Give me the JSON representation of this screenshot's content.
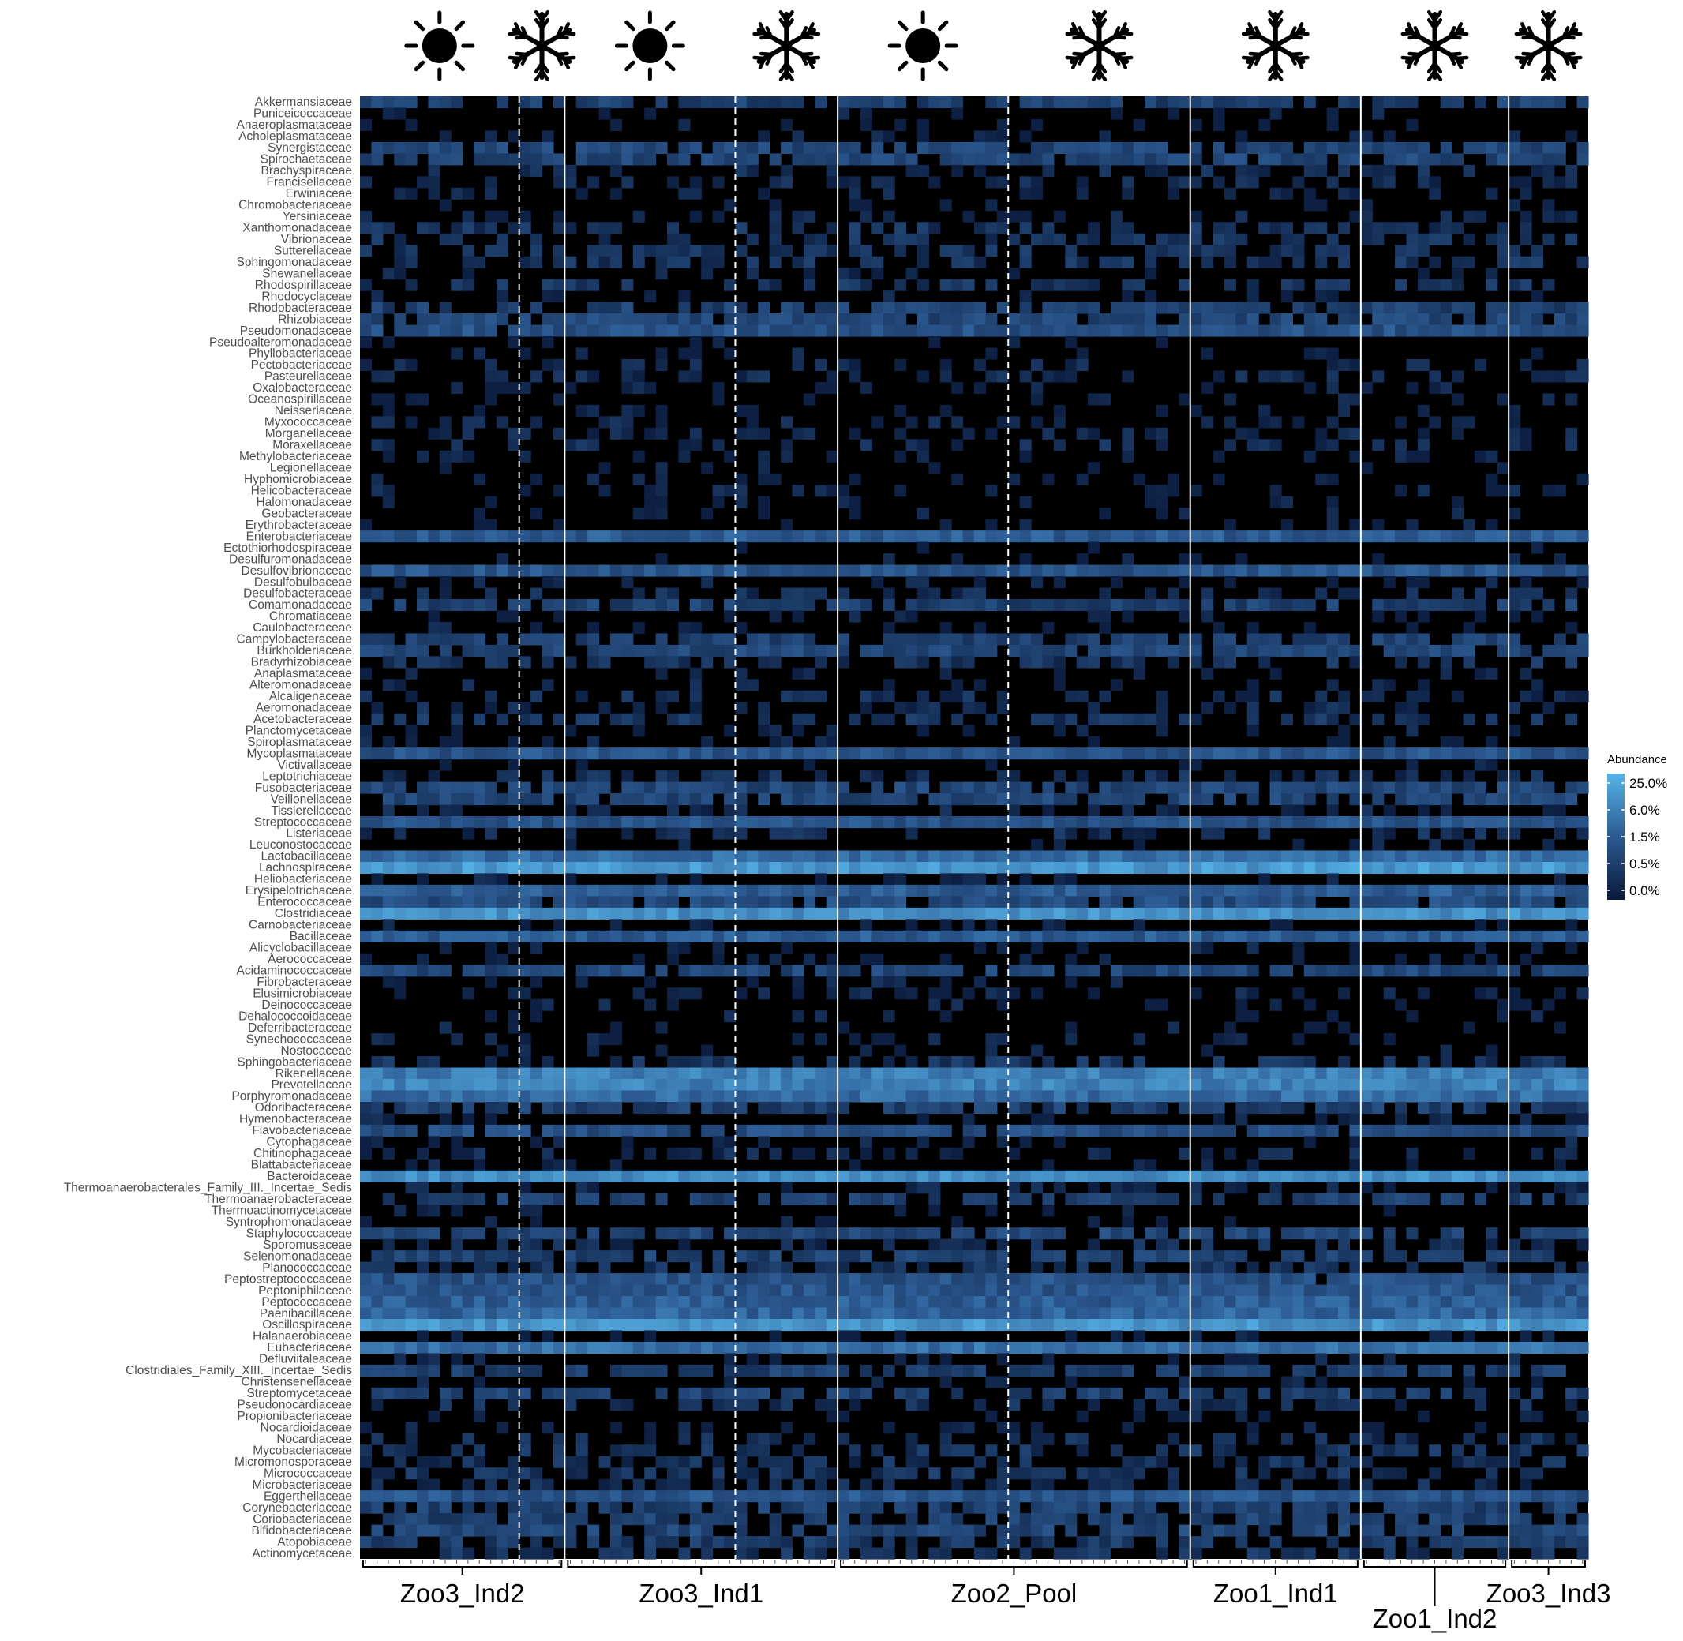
{
  "chart_data": {
    "type": "heatmap",
    "title": "",
    "xlabel": "",
    "ylabel": "",
    "rows": [
      "Akkermansiaceae",
      "Puniceicoccaceae",
      "Anaeroplasmataceae",
      "Acholeplasmataceae",
      "Synergistaceae",
      "Spirochaetaceae",
      "Brachyspiraceae",
      "Francisellaceae",
      "Erwiniaceae",
      "Chromobacteriaceae",
      "Yersiniaceae",
      "Xanthomonadaceae",
      "Vibrionaceae",
      "Sutterellaceae",
      "Sphingomonadaceae",
      "Shewanellaceae",
      "Rhodospirillaceae",
      "Rhodocyclaceae",
      "Rhodobacteraceae",
      "Rhizobiaceae",
      "Pseudomonadaceae",
      "Pseudoalteromonadaceae",
      "Phyllobacteriaceae",
      "Pectobacteriaceae",
      "Pasteurellaceae",
      "Oxalobacteraceae",
      "Oceanospirillaceae",
      "Neisseriaceae",
      "Myxococcaceae",
      "Morganellaceae",
      "Moraxellaceae",
      "Methylobacteriaceae",
      "Legionellaceae",
      "Hyphomicrobiaceae",
      "Helicobacteraceae",
      "Halomonadaceae",
      "Geobacteraceae",
      "Erythrobacteraceae",
      "Enterobacteriaceae",
      "Ectothiorhodospiraceae",
      "Desulfuromonadaceae",
      "Desulfovibrionaceae",
      "Desulfobulbaceae",
      "Desulfobacteraceae",
      "Comamonadaceae",
      "Chromatiaceae",
      "Caulobacteraceae",
      "Campylobacteraceae",
      "Burkholderiaceae",
      "Bradyrhizobiaceae",
      "Anaplasmataceae",
      "Alteromonadaceae",
      "Alcaligenaceae",
      "Aeromonadaceae",
      "Acetobacteraceae",
      "Planctomycetaceae",
      "Spiroplasmataceae",
      "Mycoplasmataceae",
      "Victivallaceae",
      "Leptotrichiaceae",
      "Fusobacteriaceae",
      "Veillonellaceae",
      "Tissierellaceae",
      "Streptococcaceae",
      "Listeriaceae",
      "Leuconostocaceae",
      "Lactobacillaceae",
      "Lachnospiraceae",
      "Heliobacteriaceae",
      "Erysipelotrichaceae",
      "Enterococcaceae",
      "Clostridiaceae",
      "Carnobacteriaceae",
      "Bacillaceae",
      "Alicyclobacillaceae",
      "Aerococcaceae",
      "Acidaminococcaceae",
      "Fibrobacteraceae",
      "Elusimicrobiaceae",
      "Deinococcaceae",
      "Dehalococcoidaceae",
      "Deferribacteraceae",
      "Synechococcaceae",
      "Nostocaceae",
      "Sphingobacteriaceae",
      "Rikenellaceae",
      "Prevotellaceae",
      "Porphyromonadaceae",
      "Odoribacteraceae",
      "Hymenobacteraceae",
      "Flavobacteriaceae",
      "Cytophagaceae",
      "Chitinophagaceae",
      "Blattabacteriaceae",
      "Bacteroidaceae",
      "Thermoanaerobacterales_Family_III._Incertae_Sedis",
      "Thermoanaerobacteraceae",
      "Thermoactinomycetaceae",
      "Syntrophomonadaceae",
      "Staphylococcaceae",
      "Sporomusaceae",
      "Selenomonadaceae",
      "Planococcaceae",
      "Peptostreptococcaceae",
      "Peptoniphilaceae",
      "Peptococcaceae",
      "Paenibacillaceae",
      "Oscillospiraceae",
      "Halanaerobiaceae",
      "Eubacteriaceae",
      "Defluviitaleaceae",
      "Clostridiales_Family_XIII._Incertae_Sedis",
      "Christensenellaceae",
      "Streptomycetaceae",
      "Pseudonocardiaceae",
      "Propionibacteriaceae",
      "Nocardioidaceae",
      "Nocardiaceae",
      "Mycobacteriaceae",
      "Micromonosporaceae",
      "Micrococcaceae",
      "Microbacteriaceae",
      "Eggerthellaceae",
      "Corynebacteriaceae",
      "Coriobacteriaceae",
      "Bifidobacteriaceae",
      "Atopobiaceae",
      "Actinomycetaceae"
    ],
    "groups": [
      {
        "label": "Zoo3_Ind2",
        "columns": 18,
        "seasons": [
          {
            "icon": "sun-icon",
            "columns": 14
          },
          {
            "icon": "snowflake-icon",
            "columns": 4
          }
        ]
      },
      {
        "label": "Zoo3_Ind1",
        "columns": 24,
        "seasons": [
          {
            "icon": "sun-icon",
            "columns": 15
          },
          {
            "icon": "snowflake-icon",
            "columns": 9
          }
        ]
      },
      {
        "label": "Zoo2_Pool",
        "columns": 31,
        "seasons": [
          {
            "icon": "sun-icon",
            "columns": 15
          },
          {
            "icon": "snowflake-icon",
            "columns": 16
          }
        ]
      },
      {
        "label": "Zoo1_Ind1",
        "columns": 15,
        "seasons": [
          {
            "icon": "snowflake-icon",
            "columns": 15
          }
        ]
      },
      {
        "label": "Zoo1_Ind2",
        "columns": 13,
        "seasons": [
          {
            "icon": "snowflake-icon",
            "columns": 13
          }
        ]
      },
      {
        "label": "Zoo3_Ind3",
        "columns": 7,
        "seasons": [
          {
            "icon": "snowflake-icon",
            "columns": 7
          }
        ]
      }
    ],
    "row_abundance_level": [
      0.3,
      0.05,
      0.02,
      0.05,
      0.35,
      0.35,
      0.15,
      0.12,
      0.06,
      0.06,
      0.08,
      0.2,
      0.2,
      0.2,
      0.2,
      0.05,
      0.2,
      0.05,
      0.3,
      0.35,
      0.42,
      0.02,
      0.05,
      0.1,
      0.12,
      0.05,
      0.05,
      0.05,
      0.1,
      0.1,
      0.15,
      0.04,
      0.02,
      0.05,
      0.08,
      0.04,
      0.04,
      0.03,
      0.5,
      0.02,
      0.03,
      0.45,
      0.05,
      0.15,
      0.3,
      0.05,
      0.05,
      0.3,
      0.35,
      0.2,
      0.05,
      0.08,
      0.15,
      0.12,
      0.2,
      0.05,
      0.05,
      0.45,
      0.03,
      0.15,
      0.35,
      0.35,
      0.1,
      0.45,
      0.15,
      0.05,
      0.6,
      0.85,
      0.05,
      0.5,
      0.4,
      0.8,
      0.05,
      0.5,
      0.05,
      0.05,
      0.35,
      0.08,
      0.08,
      0.05,
      0.05,
      0.05,
      0.05,
      0.05,
      0.2,
      0.7,
      0.72,
      0.6,
      0.3,
      0.05,
      0.4,
      0.05,
      0.12,
      0.05,
      0.78,
      0.08,
      0.3,
      0.03,
      0.03,
      0.35,
      0.15,
      0.3,
      0.2,
      0.42,
      0.45,
      0.5,
      0.55,
      0.82,
      0.05,
      0.62,
      0.05,
      0.3,
      0.05,
      0.3,
      0.15,
      0.05,
      0.05,
      0.15,
      0.2,
      0.18,
      0.2,
      0.15,
      0.45,
      0.3,
      0.3,
      0.35,
      0.25,
      0.2
    ],
    "legend": {
      "title": "Abundance",
      "ticks": [
        "25.0%",
        "6.0%",
        "1.5%",
        "0.5%",
        "0.0%"
      ],
      "placement": "right"
    },
    "colors": {
      "low": "#0a1a3a",
      "mid": "#2c5a92",
      "high": "#56b4e9",
      "empty": "#000000",
      "panel_border": "#ffffff"
    }
  }
}
